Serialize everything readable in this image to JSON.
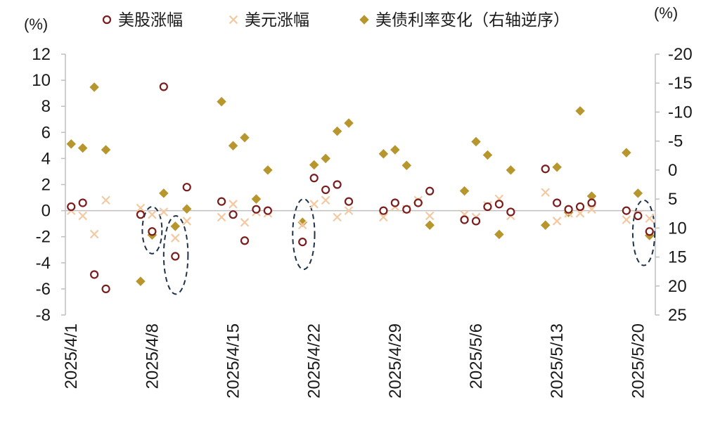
{
  "colors": {
    "stock": "#7b1c1c",
    "usd": "#f4c9a2",
    "bond": "#b8962e",
    "ellipse": "#1f3247",
    "axis": "#bfbfbf"
  },
  "chart_data": {
    "type": "scatter",
    "left_unit": "(%)",
    "right_unit": "(%)",
    "ylim_left": [
      -8,
      12
    ],
    "ylim_right": [
      25,
      -20
    ],
    "right_axis_reversed": true,
    "left_ticks": [
      "12",
      "10",
      "8",
      "6",
      "4",
      "2",
      "0",
      "-2",
      "-4",
      "-6",
      "-8"
    ],
    "right_ticks": [
      "-20",
      "-15",
      "-10",
      "-5",
      "0",
      "5",
      "10",
      "15",
      "20",
      "25"
    ],
    "x_labels": [
      "2025/4/1",
      "2025/4/8",
      "2025/4/15",
      "2025/4/22",
      "2025/4/29",
      "2025/5/6",
      "2025/5/13",
      "2025/5/20"
    ],
    "x_label_index": [
      0,
      7,
      14,
      21,
      28,
      35,
      42,
      49
    ],
    "x_count": 51,
    "legend": [
      "美股涨幅",
      "美元涨幅",
      "美债利率变化（右轴逆序）"
    ],
    "series": [
      {
        "name": "美股涨幅",
        "axis": "left",
        "marker": "circle",
        "points": [
          [
            0,
            0.3
          ],
          [
            1,
            0.6
          ],
          [
            2,
            -4.9
          ],
          [
            3,
            -6.0
          ],
          [
            6,
            -0.3
          ],
          [
            7,
            -1.6
          ],
          [
            8,
            9.5
          ],
          [
            9,
            -3.5
          ],
          [
            10,
            1.8
          ],
          [
            13,
            0.7
          ],
          [
            14,
            -0.3
          ],
          [
            15,
            -2.3
          ],
          [
            16,
            0.1
          ],
          [
            17,
            0.0
          ],
          [
            20,
            -2.4
          ],
          [
            21,
            2.5
          ],
          [
            22,
            1.6
          ],
          [
            23,
            2.0
          ],
          [
            24,
            0.7
          ],
          [
            27,
            0.0
          ],
          [
            28,
            0.6
          ],
          [
            29,
            0.1
          ],
          [
            30,
            0.6
          ],
          [
            31,
            1.5
          ],
          [
            34,
            -0.7
          ],
          [
            35,
            -0.8
          ],
          [
            36,
            0.3
          ],
          [
            37,
            0.5
          ],
          [
            38,
            -0.1
          ],
          [
            41,
            3.2
          ],
          [
            42,
            0.6
          ],
          [
            43,
            0.1
          ],
          [
            44,
            0.3
          ],
          [
            45,
            0.6
          ],
          [
            48,
            0.0
          ],
          [
            49,
            -0.4
          ],
          [
            50,
            -1.6
          ]
        ]
      },
      {
        "name": "美元涨幅",
        "axis": "left",
        "marker": "x",
        "points": [
          [
            0,
            0.0
          ],
          [
            1,
            -0.4
          ],
          [
            2,
            -1.8
          ],
          [
            3,
            0.8
          ],
          [
            6,
            0.2
          ],
          [
            7,
            -0.3
          ],
          [
            8,
            -0.1
          ],
          [
            9,
            -2.1
          ],
          [
            10,
            -0.8
          ],
          [
            13,
            -0.5
          ],
          [
            14,
            0.5
          ],
          [
            15,
            -0.9
          ],
          [
            16,
            -0.1
          ],
          [
            17,
            -0.2
          ],
          [
            20,
            -1.1
          ],
          [
            21,
            0.5
          ],
          [
            22,
            0.8
          ],
          [
            23,
            -0.5
          ],
          [
            24,
            0.0
          ],
          [
            27,
            -0.5
          ],
          [
            28,
            0.3
          ],
          [
            29,
            0.1
          ],
          [
            30,
            0.8
          ],
          [
            31,
            -0.4
          ],
          [
            34,
            -0.3
          ],
          [
            35,
            -0.5
          ],
          [
            36,
            0.4
          ],
          [
            37,
            0.9
          ],
          [
            38,
            -0.4
          ],
          [
            41,
            1.4
          ],
          [
            42,
            -0.8
          ],
          [
            43,
            -0.2
          ],
          [
            44,
            -0.2
          ],
          [
            45,
            0.1
          ],
          [
            48,
            -0.7
          ],
          [
            49,
            -0.3
          ],
          [
            50,
            -0.6
          ]
        ]
      },
      {
        "name": "美债利率变化（右轴逆序）",
        "axis": "right",
        "marker": "diamond",
        "points": [
          [
            0,
            -4.5
          ],
          [
            1,
            -3.8
          ],
          [
            2,
            -14.3
          ],
          [
            3,
            -3.5
          ],
          [
            6,
            19.2
          ],
          [
            7,
            11.2
          ],
          [
            8,
            4.0
          ],
          [
            9,
            9.7
          ],
          [
            10,
            6.7
          ],
          [
            13,
            -11.8
          ],
          [
            14,
            -4.2
          ],
          [
            15,
            -5.6
          ],
          [
            16,
            5.0
          ],
          [
            17,
            0.0
          ],
          [
            20,
            9.0
          ],
          [
            21,
            -0.9
          ],
          [
            22,
            -2.0
          ],
          [
            23,
            -6.7
          ],
          [
            24,
            -8.1
          ],
          [
            27,
            -2.8
          ],
          [
            28,
            -3.5
          ],
          [
            29,
            -0.8
          ],
          [
            30,
            5.6
          ],
          [
            31,
            9.5
          ],
          [
            34,
            3.6
          ],
          [
            35,
            -4.9
          ],
          [
            36,
            -2.6
          ],
          [
            37,
            11.1
          ],
          [
            38,
            0.0
          ],
          [
            41,
            9.5
          ],
          [
            42,
            -0.5
          ],
          [
            43,
            7.3
          ],
          [
            44,
            -10.2
          ],
          [
            45,
            4.5
          ],
          [
            48,
            -3.0
          ],
          [
            49,
            4.0
          ],
          [
            50,
            11.3
          ]
        ]
      }
    ],
    "highlights": [
      {
        "cx_index": 7,
        "center_left": -1.5,
        "half_height_left": 1.8,
        "half_width_index": 0.85
      },
      {
        "cx_index": 9.05,
        "center_left": -3.4,
        "half_height_left": 3.0,
        "half_width_index": 1.05
      },
      {
        "cx_index": 20.1,
        "center_left": -1.8,
        "half_height_left": 2.7,
        "half_width_index": 0.95
      },
      {
        "cx_index": 49.5,
        "center_left": -1.7,
        "half_height_left": 2.5,
        "half_width_index": 0.95
      }
    ]
  }
}
